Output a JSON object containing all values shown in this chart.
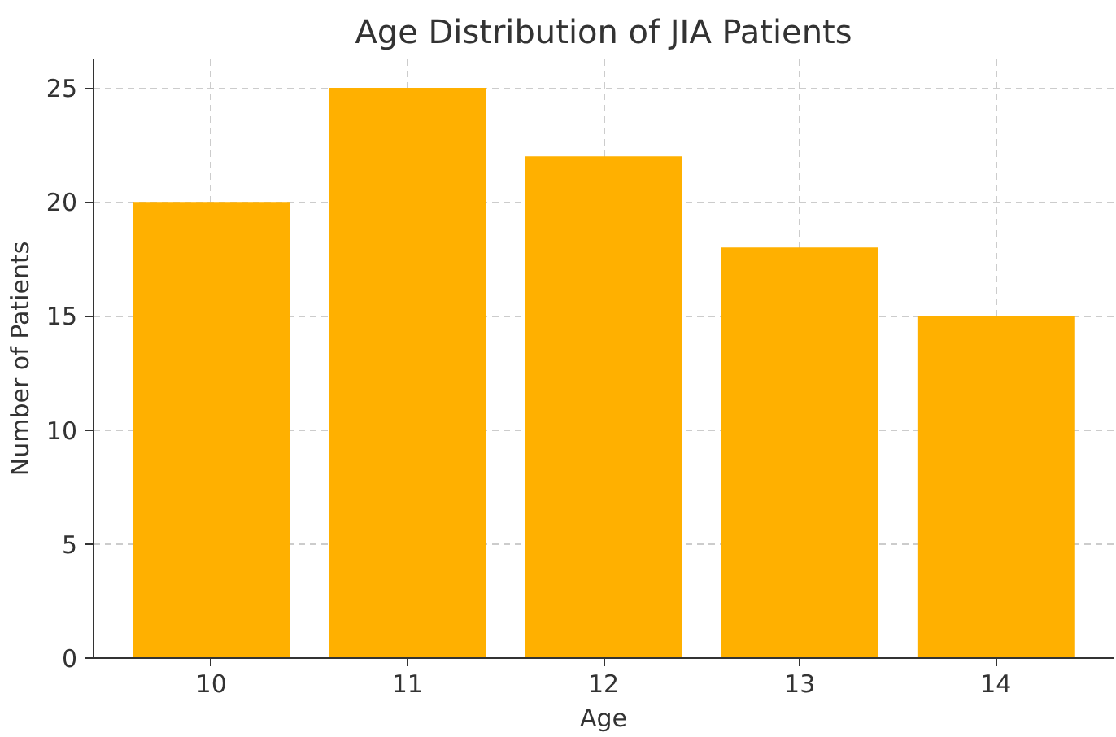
{
  "chart_data": {
    "type": "bar",
    "title": "Age Distribution of JIA Patients",
    "xlabel": "Age",
    "ylabel": "Number of Patients",
    "x": [
      10,
      11,
      12,
      13,
      14
    ],
    "values": [
      20,
      25,
      22,
      18,
      15
    ],
    "color": "#ffb000",
    "xlim": [
      9.4,
      14.6
    ],
    "ylim": [
      0,
      26.25
    ],
    "xticks": [
      10,
      11,
      12,
      13,
      14
    ],
    "yticks": [
      0,
      5,
      10,
      15,
      20,
      25
    ],
    "grid": true
  }
}
